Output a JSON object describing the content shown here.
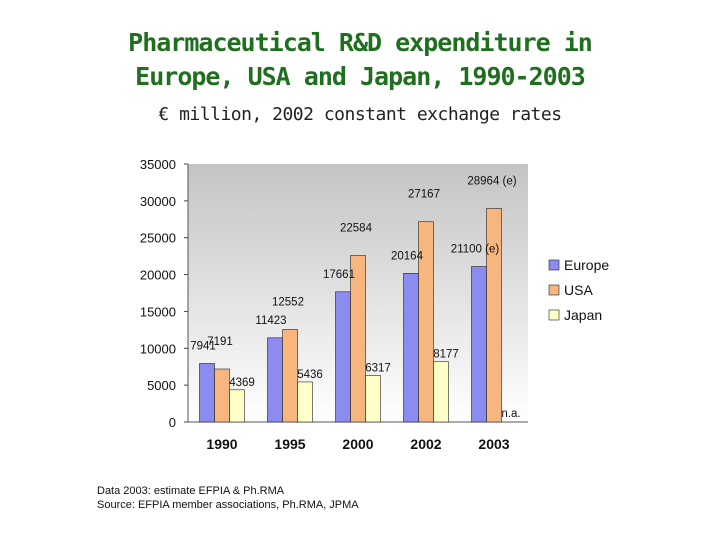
{
  "header": {
    "title_line1": "Pharmaceutical R&D expenditure in",
    "title_line2": "Europe, USA and Japan, 1990-2003",
    "subtitle": "€ million, 2002 constant exchange rates"
  },
  "notes": {
    "line1": "Data 2003: estimate EFPIA & Ph.RMA",
    "line2": "Source: EFPIA member associations, Ph.RMA, JPMA"
  },
  "colors": {
    "europe": "#8c8cf0",
    "usa": "#f7b67e",
    "japan": "#ffffc8",
    "outline": "#222222"
  },
  "chart_data": {
    "type": "bar",
    "title": "Pharmaceutical R&D expenditure in Europe, USA and Japan, 1990-2003",
    "ylabel": "€ million, 2002 constant exchange rates",
    "xlabel": "",
    "categories": [
      "1990",
      "1995",
      "2000",
      "2002",
      "2003"
    ],
    "ylim": [
      0,
      35000
    ],
    "yticks": [
      0,
      5000,
      10000,
      15000,
      20000,
      25000,
      30000,
      35000
    ],
    "legend_position": "right",
    "series": [
      {
        "name": "Europe",
        "values": [
          7941,
          11423,
          17661,
          20164,
          21100
        ],
        "labels": [
          "7941",
          "11423",
          "17661",
          "20164",
          "21100 (e)"
        ]
      },
      {
        "name": "USA",
        "values": [
          7191,
          12552,
          22584,
          27167,
          28964
        ],
        "labels": [
          "7191",
          "12552",
          "22584",
          "27167",
          "28964 (e)"
        ]
      },
      {
        "name": "Japan",
        "values": [
          4369,
          5436,
          6317,
          8177,
          null
        ],
        "labels": [
          "4369",
          "5436",
          "6317",
          "8177",
          "n.a."
        ]
      }
    ]
  }
}
